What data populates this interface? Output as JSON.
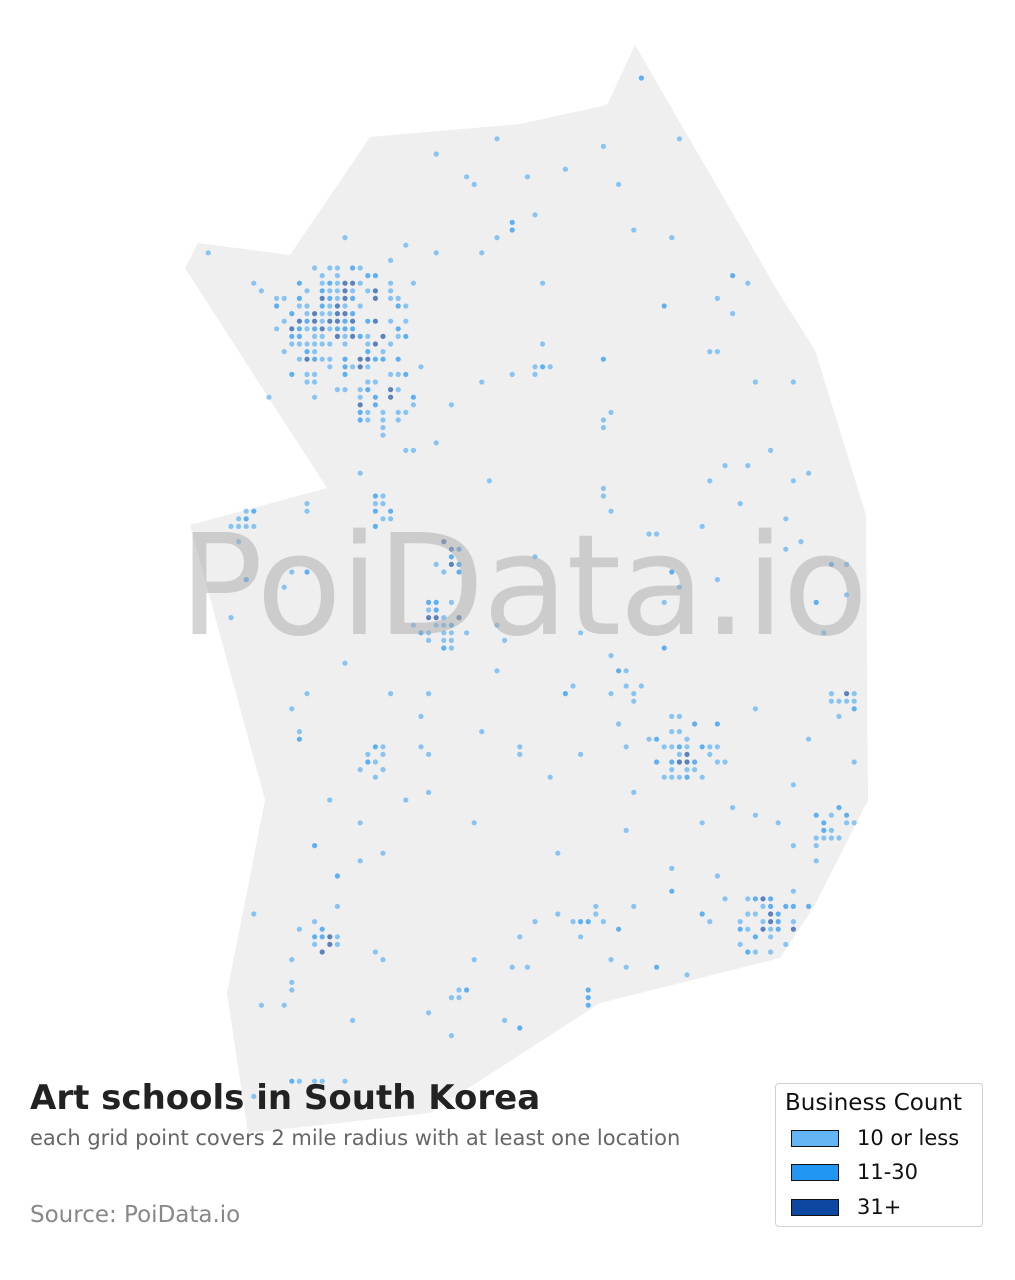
{
  "title": "Art schools in South Korea",
  "subtitle": "each grid point covers 2 mile radius with at least one location",
  "source": "Source: PoiData.io",
  "watermark": "PoiData.io",
  "map": {
    "land_color": "#efefef"
  },
  "legend": {
    "title": "Business Count",
    "items": [
      {
        "label": "10 or less",
        "color": "#64b5f6"
      },
      {
        "label": "11-30",
        "color": "#2196f3"
      },
      {
        "label": "31+",
        "color": "#0d47a1"
      }
    ]
  }
}
